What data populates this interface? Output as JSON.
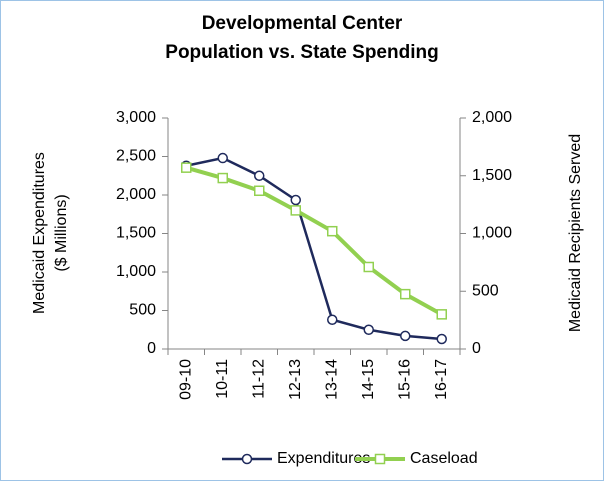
{
  "chart_data": {
    "type": "line",
    "title": [
      "Developmental Center",
      "Population vs. State Spending"
    ],
    "ylabel": [
      "Medicaid Expenditures",
      "($ Millions)"
    ],
    "y2label": "Medicaid Recipients Served",
    "categories": [
      "09-10",
      "10-11",
      "11-12",
      "12-13",
      "13-14",
      "14-15",
      "15-16",
      "16-17"
    ],
    "series": [
      {
        "name": "Expenditures",
        "color": "#1f2a5c",
        "marker": "circle",
        "values": [
          2380,
          2480,
          2250,
          1935,
          380,
          250,
          170,
          130
        ]
      },
      {
        "name": "Caseload",
        "color": "#92d050",
        "marker": "square",
        "axis": "y2",
        "values": [
          1570,
          1480,
          1370,
          1200,
          1020,
          710,
          475,
          300
        ]
      }
    ],
    "ylim": [
      0,
      3000
    ],
    "yticks": [
      0,
      500,
      {
        "value": 1000,
        "label": "1,000"
      },
      {
        "value": 1500,
        "label": "1,500"
      },
      {
        "value": 2000,
        "label": "2,000"
      },
      {
        "value": 2500,
        "label": "2,500"
      },
      {
        "value": 3000,
        "label": "3,000"
      }
    ],
    "y2lim": [
      0,
      2000
    ],
    "y2ticks": [
      0,
      500,
      {
        "value": 1000,
        "label": "1,000"
      },
      {
        "value": 1500,
        "label": "1,500"
      },
      {
        "value": 2000,
        "label": "2,000"
      }
    ],
    "grid": false,
    "legend": "bottom"
  }
}
